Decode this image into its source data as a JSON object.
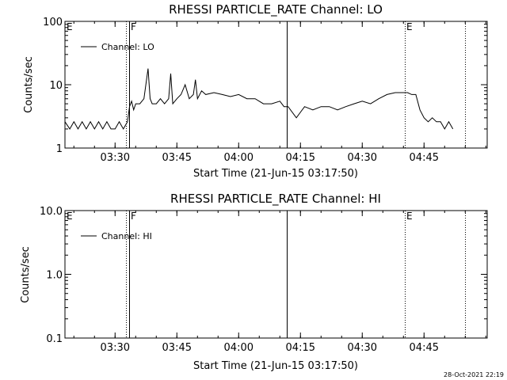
{
  "chart_data": [
    {
      "type": "line",
      "title": "RHESSI PARTICLE_RATE Channel: LO",
      "xlabel": "Start Time (21-Jun-15 03:17:50)",
      "ylabel": "Counts/sec",
      "yscale": "log",
      "ylim": [
        1,
        100
      ],
      "xlim": [
        "03:17:50",
        "05:00:20"
      ],
      "x_ticks": [
        "03:30",
        "03:45",
        "04:00",
        "04:15",
        "04:30",
        "04:45"
      ],
      "y_ticks": [
        "1",
        "10",
        "100"
      ],
      "legend": "Channel: LO",
      "legend_position": "top-left",
      "series": [
        {
          "name": "Channel: LO",
          "x": [
            "03:17:50",
            "03:19:00",
            "03:20:00",
            "03:21:00",
            "03:22:00",
            "03:23:00",
            "03:24:00",
            "03:25:00",
            "03:26:00",
            "03:27:00",
            "03:28:00",
            "03:29:00",
            "03:30:00",
            "03:31:00",
            "03:32:00",
            "03:33:00",
            "03:33:30",
            "03:34:00",
            "03:34:30",
            "03:35:00",
            "03:36:00",
            "03:37:00",
            "03:38:00",
            "03:38:30",
            "03:39:00",
            "03:40:00",
            "03:41:00",
            "03:42:00",
            "03:43:00",
            "03:43:30",
            "03:44:00",
            "03:45:00",
            "03:46:00",
            "03:47:00",
            "03:48:00",
            "03:49:00",
            "03:49:30",
            "03:50:00",
            "03:51:00",
            "03:52:00",
            "03:54:00",
            "03:56:00",
            "03:58:00",
            "04:00:00",
            "04:02:00",
            "04:04:00",
            "04:06:00",
            "04:08:00",
            "04:10:00",
            "04:11:00",
            "04:12:00",
            "04:14:00",
            "04:16:00",
            "04:18:00",
            "04:20:00",
            "04:22:00",
            "04:24:00",
            "04:26:00",
            "04:28:00",
            "04:30:00",
            "04:32:00",
            "04:34:00",
            "04:36:00",
            "04:38:00",
            "04:39:00",
            "04:40:00",
            "04:41:00",
            "04:42:00",
            "04:43:00",
            "04:44:00",
            "04:45:00",
            "04:46:00",
            "04:47:00",
            "04:48:00",
            "04:49:00",
            "04:50:00",
            "04:51:00",
            "04:52:00"
          ],
          "y": [
            2.6,
            2,
            2.6,
            2,
            2.6,
            2,
            2.6,
            2,
            2.6,
            2,
            2.6,
            2,
            2,
            2.6,
            2,
            2.6,
            4.5,
            5.5,
            4,
            5,
            5,
            6,
            18,
            6,
            5,
            5,
            6,
            5,
            6,
            15,
            5,
            6,
            7,
            10,
            6,
            7,
            12,
            6,
            8,
            7,
            7.5,
            7,
            6.5,
            7,
            6,
            6,
            5,
            5,
            5.5,
            4.5,
            4.5,
            3,
            4.5,
            4,
            4.5,
            4.5,
            4,
            4.5,
            5,
            5.5,
            5,
            6,
            7,
            7.5,
            7.5,
            7.5,
            7.5,
            7,
            7,
            4,
            3,
            2.6,
            3,
            2.6,
            2.6,
            2,
            2.6,
            2
          ]
        }
      ]
    },
    {
      "type": "line",
      "title": "RHESSI PARTICLE_RATE Channel: HI",
      "xlabel": "Start Time (21-Jun-15 03:17:50)",
      "ylabel": "Counts/sec",
      "yscale": "log",
      "ylim": [
        0.1,
        10
      ],
      "xlim": [
        "03:17:50",
        "05:00:20"
      ],
      "x_ticks": [
        "03:30",
        "03:45",
        "04:00",
        "04:15",
        "04:30",
        "04:45"
      ],
      "y_ticks": [
        "0.1",
        "1.0",
        "10.0"
      ],
      "legend": "Channel: HI",
      "legend_position": "top-left",
      "series": [
        {
          "name": "Channel: HI",
          "x": [],
          "y": []
        }
      ]
    }
  ],
  "markers": [
    "E",
    "F",
    "E"
  ],
  "timestamp": "28-Oct-2021 22:19"
}
